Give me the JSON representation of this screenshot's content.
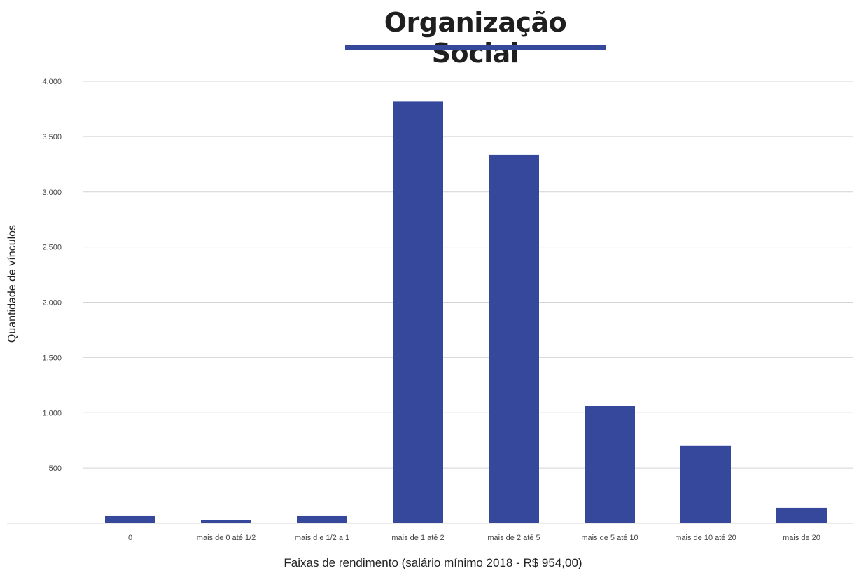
{
  "chart_data": {
    "type": "bar",
    "title": "Organização Social",
    "xlabel": "Faixas de rendimento (salário mínimo 2018 - R$ 954,00)",
    "ylabel": "Quantidade de vínculos",
    "categories": [
      "0",
      "mais de 0 até 1/2",
      "mais d e 1/2 a 1",
      "mais de 1 até 2",
      "mais de 2 até 5",
      "mais de 5 até 10",
      "mais de 10 até 20",
      "mais de 20"
    ],
    "values": [
      70,
      30,
      70,
      3820,
      3335,
      1060,
      705,
      140
    ],
    "ylim": [
      0,
      4000
    ],
    "yticks": [
      500,
      1000,
      1500,
      2000,
      2500,
      3000,
      3500,
      4000
    ],
    "ytick_labels": [
      "500",
      "1.000",
      "1.500",
      "2.000",
      "2.500",
      "3.000",
      "3.500",
      "4.000"
    ],
    "grid": true,
    "legend": "none",
    "bar_color": "#35489c",
    "accent_color": "#35489c"
  }
}
